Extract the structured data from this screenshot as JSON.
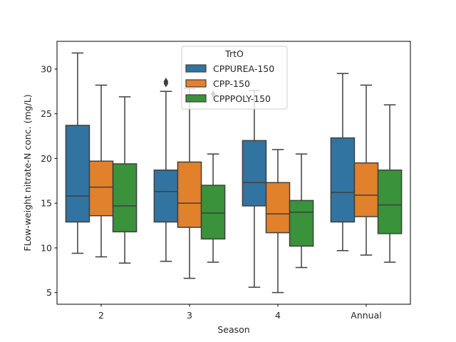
{
  "chart_data": {
    "type": "boxplot",
    "xlabel": "Season",
    "ylabel": "FLow-weight nitrate-N conc. (mg/L)",
    "categories": [
      "2",
      "3",
      "4",
      "Annual"
    ],
    "ylim": [
      3.7,
      33.1
    ],
    "yticks": [
      5,
      10,
      15,
      20,
      25,
      30
    ],
    "legend": {
      "title": "TrtO",
      "placement": "top-center"
    },
    "grid": false,
    "series": [
      {
        "name": "CPPUREA-150",
        "color": "#3274a1",
        "boxes": [
          {
            "whisker_low": 9.4,
            "q1": 12.9,
            "median": 15.8,
            "q3": 23.7,
            "whisker_high": 31.8,
            "outliers": []
          },
          {
            "whisker_low": 8.5,
            "q1": 12.9,
            "median": 16.3,
            "q3": 18.7,
            "whisker_high": 27.5,
            "outliers": [
              28.6,
              28.4
            ]
          },
          {
            "whisker_low": 5.6,
            "q1": 14.7,
            "median": 17.3,
            "q3": 22.0,
            "whisker_high": 27.6,
            "outliers": []
          },
          {
            "whisker_low": 9.7,
            "q1": 12.9,
            "median": 16.2,
            "q3": 22.3,
            "whisker_high": 29.5,
            "outliers": []
          }
        ]
      },
      {
        "name": "CPP-150",
        "color": "#e1812c",
        "boxes": [
          {
            "whisker_low": 9.0,
            "q1": 13.6,
            "median": 16.8,
            "q3": 19.7,
            "whisker_high": 28.2,
            "outliers": []
          },
          {
            "whisker_low": 6.6,
            "q1": 12.3,
            "median": 15.0,
            "q3": 19.6,
            "whisker_high": 27.8,
            "outliers": []
          },
          {
            "whisker_low": 5.0,
            "q1": 11.7,
            "median": 13.8,
            "q3": 17.3,
            "whisker_high": 21.0,
            "outliers": []
          },
          {
            "whisker_low": 9.2,
            "q1": 13.5,
            "median": 15.9,
            "q3": 19.5,
            "whisker_high": 28.2,
            "outliers": []
          }
        ]
      },
      {
        "name": "CPPPOLY-150",
        "color": "#3a923a",
        "boxes": [
          {
            "whisker_low": 8.3,
            "q1": 11.8,
            "median": 14.7,
            "q3": 19.4,
            "whisker_high": 26.9,
            "outliers": []
          },
          {
            "whisker_low": 8.4,
            "q1": 11.0,
            "median": 13.9,
            "q3": 17.0,
            "whisker_high": 20.5,
            "outliers": [
              27.2
            ]
          },
          {
            "whisker_low": 7.8,
            "q1": 10.2,
            "median": 14.0,
            "q3": 15.3,
            "whisker_high": 20.5,
            "outliers": []
          },
          {
            "whisker_low": 8.4,
            "q1": 11.6,
            "median": 14.8,
            "q3": 18.7,
            "whisker_high": 26.0,
            "outliers": []
          }
        ]
      }
    ]
  }
}
